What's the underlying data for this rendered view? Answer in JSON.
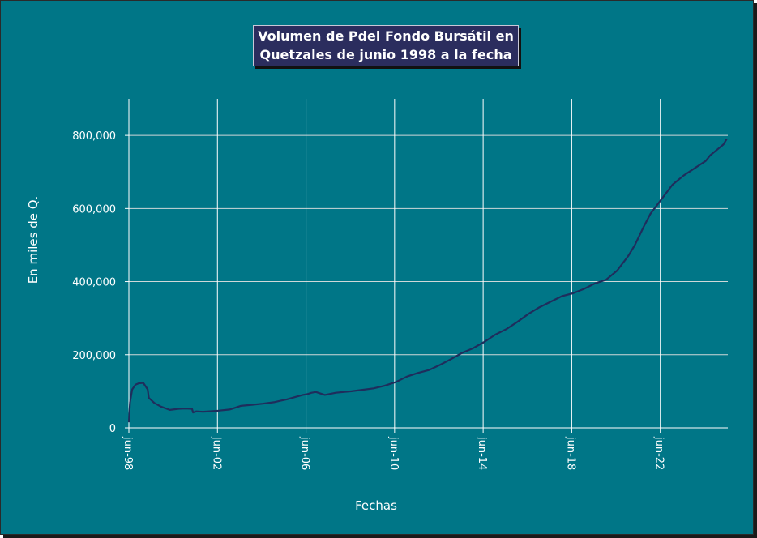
{
  "colors": {
    "background": "#007687",
    "title_box": "#2b2d5e",
    "series_line": "#1f2d5c",
    "grid": "#cfd8d8"
  },
  "chart_data": {
    "type": "line",
    "title_line1": "Volumen de Pdel Fondo Bursátil en",
    "title_line2": "Quetzales de junio 1998 a la fecha",
    "xlabel": "Fechas",
    "ylabel": "En miles de Q.",
    "x_tick_labels": [
      "jun-98",
      "jun-02",
      "jun-06",
      "jun-10",
      "jun-14",
      "jun-18",
      "jun-22"
    ],
    "y_tick_labels": [
      "0",
      "200,000",
      "400,000",
      "600,000",
      "800,000"
    ],
    "ylim": [
      0,
      900000
    ],
    "xlim": [
      1998.45,
      2025.5
    ],
    "grid": "vertical at x ticks, horizontal at y ticks",
    "series": [
      {
        "x": [
          1998.45,
          1998.5,
          1998.6,
          1998.75,
          1998.9,
          1999.1,
          1999.3,
          1999.35,
          1999.6,
          1999.9,
          2000.3,
          2000.7,
          2001.0,
          2001.3,
          2001.35,
          2001.5,
          2001.8,
          2002.5,
          2003.0,
          2003.5,
          2004.0,
          2004.5,
          2005.0,
          2005.3,
          2005.6,
          2006.0,
          2006.3,
          2006.5,
          2006.7,
          2006.9,
          2007.3,
          2007.8,
          2008.5,
          2009.0,
          2009.5,
          2010.0,
          2010.5,
          2011.0,
          2011.5,
          2012.0,
          2012.5,
          2013.0,
          2013.5,
          2014.0,
          2014.5,
          2015.0,
          2015.5,
          2016.0,
          2016.5,
          2017.0,
          2017.5,
          2018.0,
          2018.5,
          2019.0,
          2019.5,
          2020.0,
          2020.5,
          2021.0,
          2021.3,
          2021.7,
          2022.0,
          2022.5,
          2023.0,
          2023.5,
          2024.0,
          2024.5,
          2024.7,
          2025.0,
          2025.3,
          2025.45
        ],
        "values": [
          15000,
          70000,
          105000,
          118000,
          122000,
          123000,
          105000,
          82000,
          68000,
          58000,
          49000,
          52000,
          53000,
          52000,
          42000,
          45000,
          44000,
          47000,
          50000,
          60000,
          63000,
          66000,
          70000,
          74000,
          78000,
          85000,
          90000,
          92000,
          96000,
          98000,
          90000,
          96000,
          100000,
          104000,
          108000,
          115000,
          125000,
          140000,
          150000,
          158000,
          172000,
          188000,
          205000,
          218000,
          235000,
          255000,
          270000,
          290000,
          312000,
          330000,
          345000,
          360000,
          368000,
          380000,
          395000,
          405000,
          430000,
          470000,
          500000,
          550000,
          585000,
          625000,
          665000,
          690000,
          710000,
          730000,
          745000,
          760000,
          775000,
          790000
        ]
      }
    ]
  }
}
